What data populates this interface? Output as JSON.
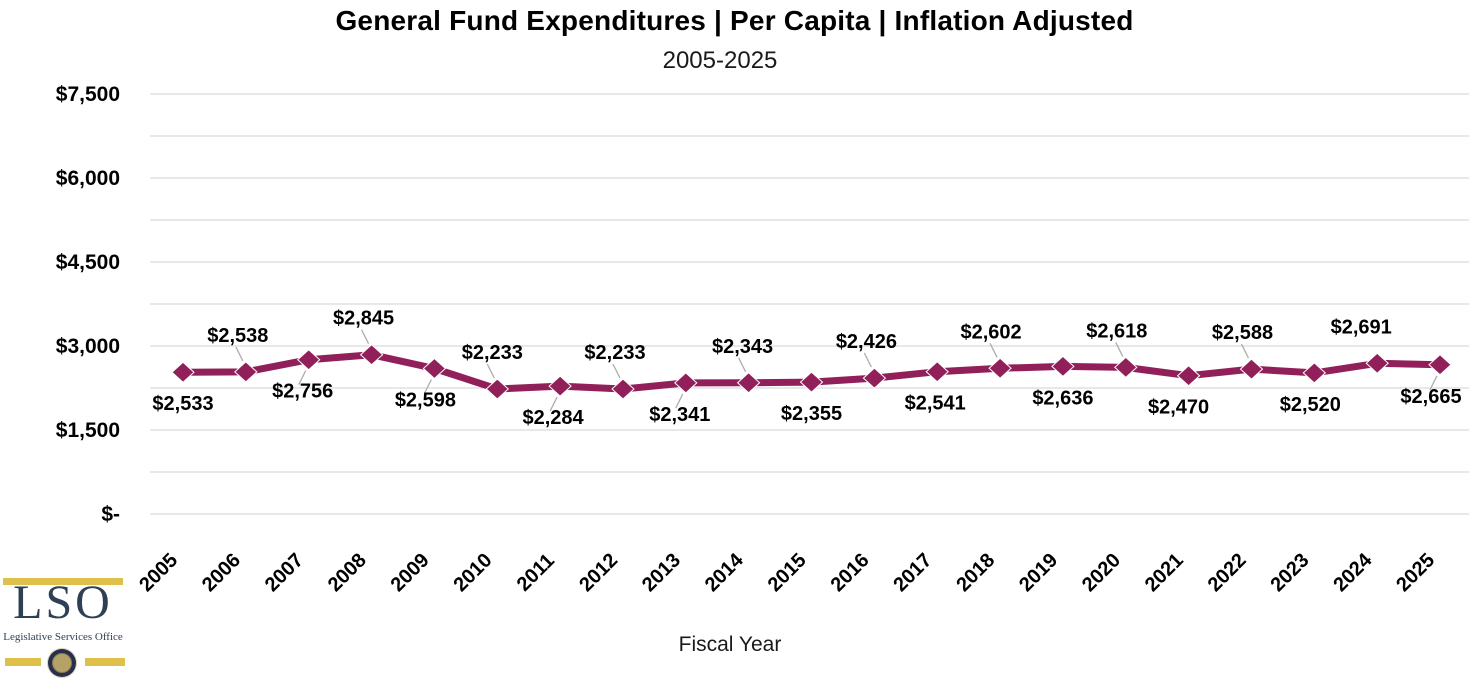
{
  "title": "General Fund Expenditures | Per Capita | Inflation Adjusted",
  "subtitle": "2005-2025",
  "xlabel": "Fiscal Year",
  "logo": {
    "acronym": "LSO",
    "name": "Legislative Services Office",
    "navy": "#2E4154",
    "gold": "#DFC04A"
  },
  "chart_data": {
    "type": "line",
    "title": "General Fund Expenditures | Per Capita | Inflation Adjusted",
    "subtitle": "2005-2025",
    "xlabel": "Fiscal Year",
    "ylabel": "",
    "ylim": [
      0,
      7500
    ],
    "gridline_step": 750,
    "ytick_label_step": 1500,
    "ytick_labels": [
      "$-",
      "$1,500",
      "$3,000",
      "$4,500",
      "$6,000",
      "$7,500"
    ],
    "grid": true,
    "legend": "none",
    "series_color": "#91205A",
    "gridline_color": "#D9D9D9",
    "leader_color": "#ADADAD",
    "label_color": "#000000",
    "categories": [
      "2005",
      "2006",
      "2007",
      "2008",
      "2009",
      "2010",
      "2011",
      "2012",
      "2013",
      "2014",
      "2015",
      "2016",
      "2017",
      "2018",
      "2019",
      "2020",
      "2021",
      "2022",
      "2023",
      "2024",
      "2025"
    ],
    "values": [
      2533,
      2538,
      2756,
      2845,
      2598,
      2233,
      2284,
      2233,
      2341,
      2343,
      2355,
      2426,
      2541,
      2602,
      2636,
      2618,
      2470,
      2588,
      2520,
      2691,
      2665
    ],
    "labels": [
      "$2,533",
      "$2,538",
      "$2,756",
      "$2,845",
      "$2,598",
      "$2,233",
      "$2,284",
      "$2,233",
      "$2,341",
      "$2,343",
      "$2,355",
      "$2,426",
      "$2,541",
      "$2,602",
      "$2,636",
      "$2,618",
      "$2,470",
      "$2,588",
      "$2,520",
      "$2,691",
      "$2,665"
    ],
    "label_pos": [
      "below",
      "above",
      "below",
      "above",
      "below",
      "above",
      "below",
      "above",
      "below",
      "above",
      "below",
      "above",
      "below",
      "above",
      "below",
      "above",
      "below",
      "above",
      "below",
      "above",
      "below"
    ],
    "leaders": [
      false,
      true,
      true,
      true,
      true,
      true,
      true,
      true,
      true,
      true,
      false,
      true,
      false,
      true,
      false,
      true,
      false,
      true,
      false,
      false,
      true
    ],
    "label_dx": [
      0,
      -8,
      -6,
      -8,
      -9,
      -5,
      -7,
      -8,
      -6,
      -6,
      0,
      -8,
      -2,
      -9,
      0,
      -9,
      -10,
      -9,
      -4,
      -16,
      -9
    ]
  }
}
